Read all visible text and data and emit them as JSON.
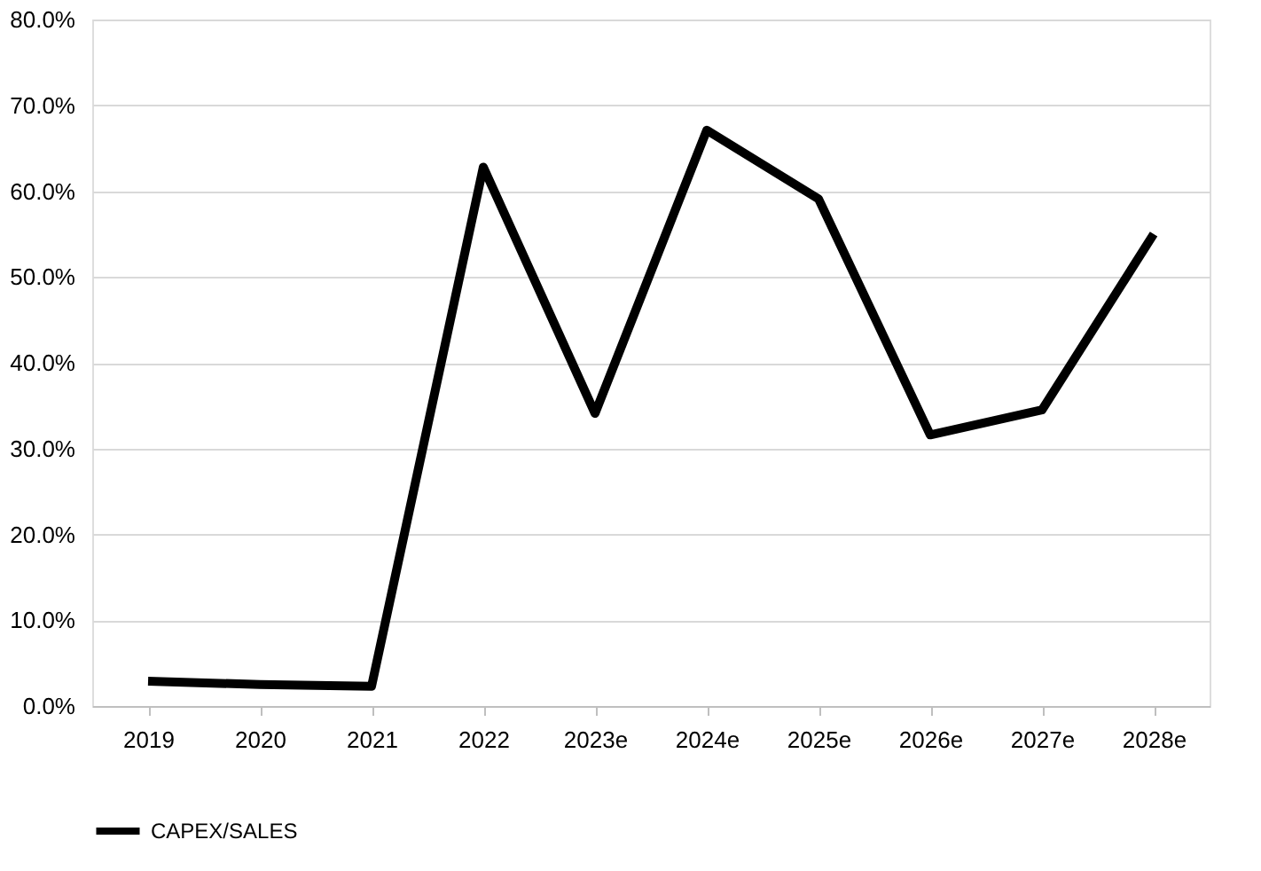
{
  "chart_data": {
    "type": "line",
    "categories": [
      "2019",
      "2020",
      "2021",
      "2022",
      "2023e",
      "2024e",
      "2025e",
      "2026e",
      "2027e",
      "2028e"
    ],
    "series": [
      {
        "name": "CAPEX/SALES",
        "color": "#000000",
        "values": [
          2.9,
          2.5,
          2.3,
          62.8,
          34.1,
          67.1,
          59.1,
          31.6,
          34.5,
          55.0
        ]
      }
    ],
    "ylim": [
      0,
      80
    ],
    "yticks": [
      {
        "value": 0,
        "label": "0.0%"
      },
      {
        "value": 10,
        "label": "10.0%"
      },
      {
        "value": 20,
        "label": "20.0%"
      },
      {
        "value": 30,
        "label": "30.0%"
      },
      {
        "value": 40,
        "label": "40.0%"
      },
      {
        "value": 50,
        "label": "50.0%"
      },
      {
        "value": 60,
        "label": "60.0%"
      },
      {
        "value": 70,
        "label": "70.0%"
      },
      {
        "value": 80,
        "label": "80.0%"
      }
    ],
    "grid": "y",
    "legend": "bottom",
    "marker": "none",
    "line_style": "solid"
  }
}
